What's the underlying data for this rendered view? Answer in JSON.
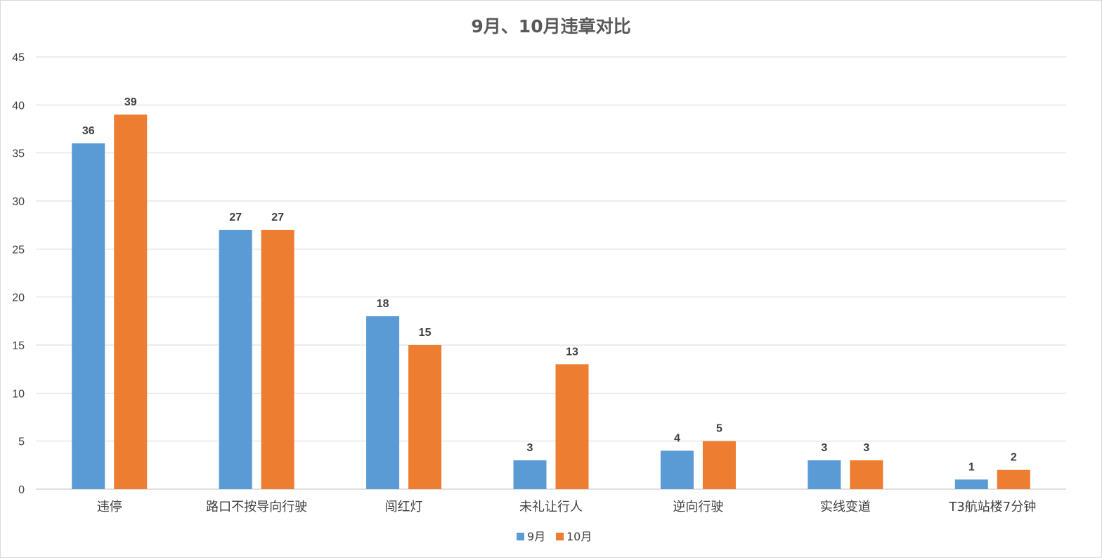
{
  "chart_data": {
    "type": "bar",
    "title": "9月、10月违章对比",
    "categories": [
      "违停",
      "路口不按导向行驶",
      "闯红灯",
      "未礼让行人",
      "逆向行驶",
      "实线变道",
      "T3航站楼7分钟"
    ],
    "series": [
      {
        "name": "9月",
        "color": "#5b9bd5",
        "values": [
          36,
          27,
          18,
          3,
          4,
          3,
          1
        ]
      },
      {
        "name": "10月",
        "color": "#ed7d31",
        "values": [
          39,
          27,
          15,
          13,
          5,
          3,
          2
        ]
      }
    ],
    "ylim": [
      0,
      45
    ],
    "yticks": [
      0,
      5,
      10,
      15,
      20,
      25,
      30,
      35,
      40,
      45
    ],
    "xlabel": "",
    "ylabel": "",
    "grid": true,
    "legend": "bottom",
    "data_labels": true
  }
}
